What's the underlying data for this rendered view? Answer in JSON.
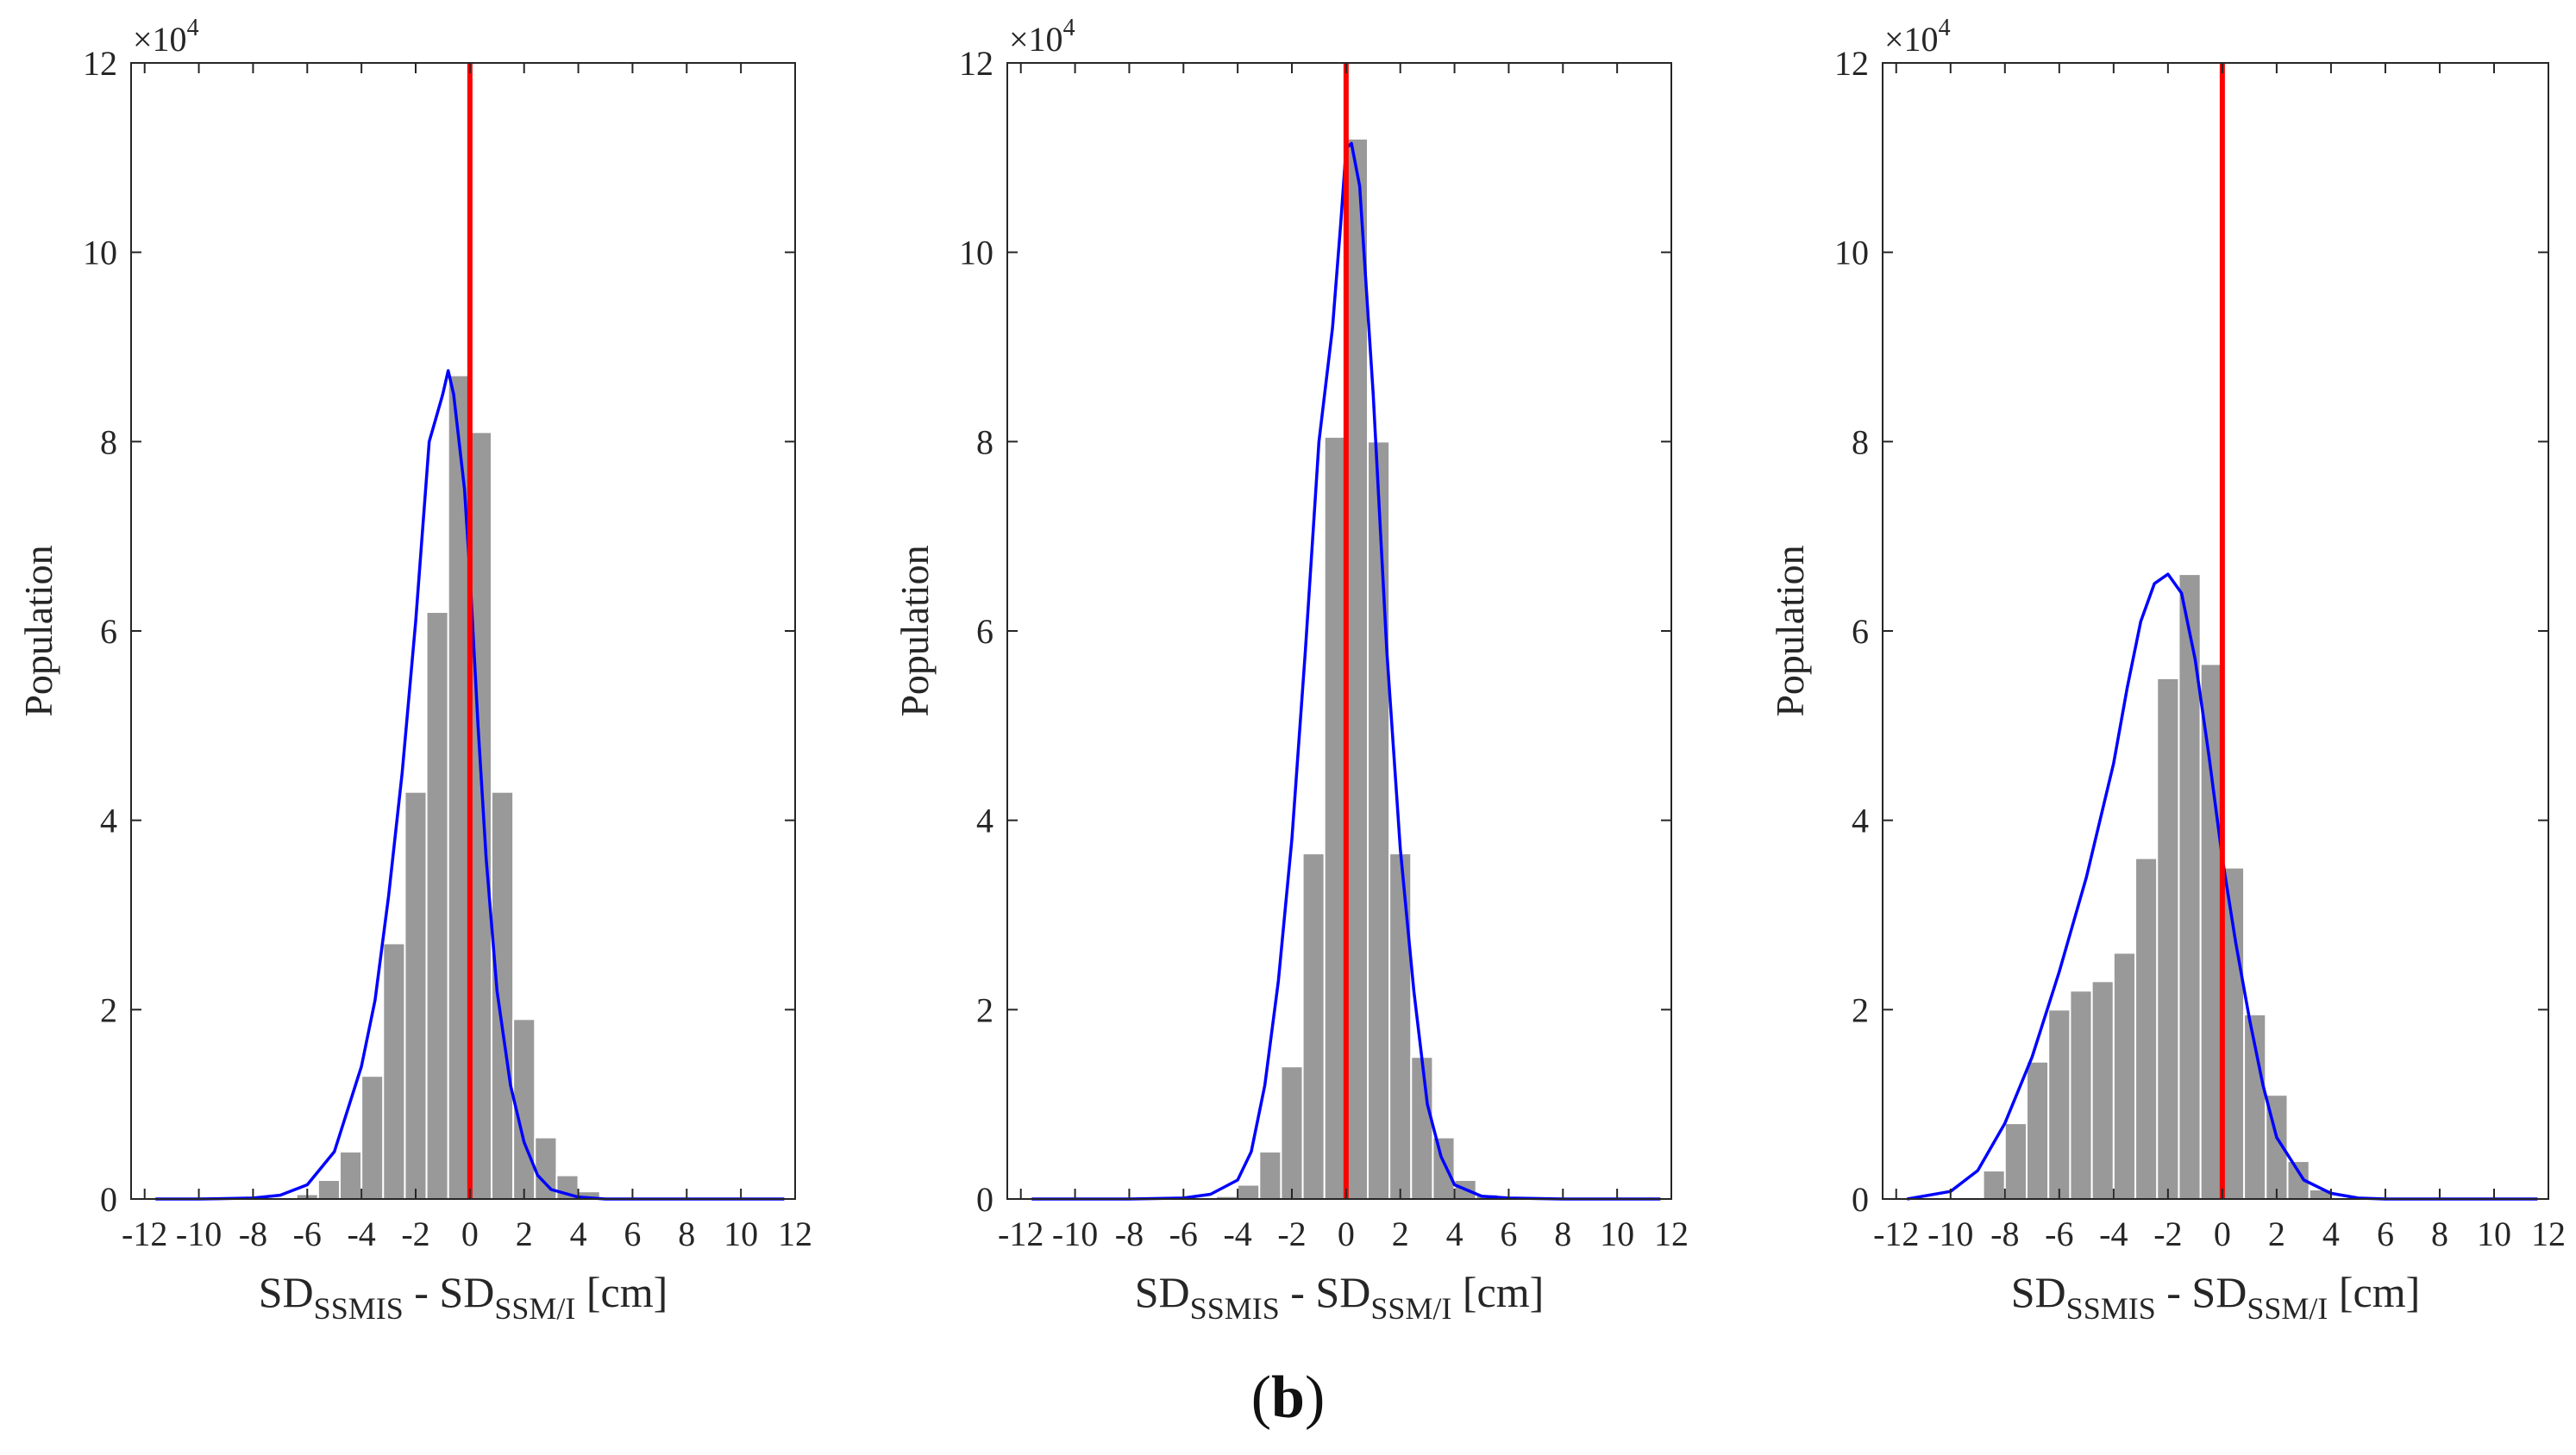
{
  "figure_label": {
    "open": "(",
    "letter": "b",
    "close": ")"
  },
  "colors": {
    "bar": "#999999",
    "bar_edge": "#ffffff",
    "fit": "#0000ff",
    "zero_line": "#ff0000",
    "axis": "#262626"
  },
  "chart_data": [
    {
      "type": "bar",
      "title": "",
      "ylabel": "Population",
      "xlabel": {
        "main1": "SD",
        "sub1": "SSMIS",
        "mid": " - SD",
        "sub2": "SSM/I",
        "tail": " [cm]"
      },
      "y_exponent": {
        "base": "×10",
        "power": "4"
      },
      "xlim": [
        -12.5,
        12
      ],
      "ylim": [
        0,
        120000
      ],
      "xticks": [
        -12,
        -10,
        -8,
        -6,
        -4,
        -2,
        0,
        2,
        4,
        6,
        8,
        10,
        12
      ],
      "xtick_labels": [
        "-12",
        "-10",
        "-8",
        "-6",
        "-4",
        "-2",
        "0",
        "2",
        "4",
        "6",
        "8",
        "10",
        "12"
      ],
      "yticks": [
        0,
        20000,
        40000,
        60000,
        80000,
        100000,
        120000
      ],
      "ytick_labels": [
        "0",
        "2",
        "4",
        "6",
        "8",
        "10",
        "12"
      ],
      "bin_width": 0.8,
      "bin_centers": [
        -6.8,
        -6.0,
        -5.2,
        -4.4,
        -3.6,
        -2.8,
        -2.0,
        -1.2,
        -0.4,
        0.4,
        1.2,
        2.0,
        2.8,
        3.6,
        4.4
      ],
      "values": [
        100,
        500,
        2000,
        5000,
        13000,
        27000,
        43000,
        62000,
        87000,
        81000,
        43000,
        19000,
        6500,
        2500,
        800
      ],
      "fit_x": [
        -11.6,
        -10,
        -8,
        -7,
        -6,
        -5,
        -4,
        -3.5,
        -3,
        -2.5,
        -2,
        -1.5,
        -1.3,
        -1.0,
        -0.8,
        -0.6,
        -0.4,
        -0.2,
        0,
        0.3,
        0.6,
        1,
        1.5,
        2,
        2.5,
        3,
        4,
        5,
        6,
        8,
        10,
        11.6
      ],
      "fit_y": [
        0,
        0,
        100,
        400,
        1500,
        5000,
        14000,
        21000,
        32000,
        45000,
        61000,
        80000,
        82000,
        85000,
        87500,
        85000,
        80000,
        75000,
        66000,
        50000,
        36000,
        22000,
        12000,
        6000,
        2500,
        1000,
        200,
        0,
        0,
        0,
        0,
        0
      ],
      "zero_line_x": 0
    },
    {
      "type": "bar",
      "title": "",
      "ylabel": "Population",
      "xlabel": {
        "main1": "SD",
        "sub1": "SSMIS",
        "mid": " - SD",
        "sub2": "SSM/I",
        "tail": " [cm]"
      },
      "y_exponent": {
        "base": "×10",
        "power": "4"
      },
      "xlim": [
        -12.5,
        12
      ],
      "ylim": [
        0,
        120000
      ],
      "xticks": [
        -12,
        -10,
        -8,
        -6,
        -4,
        -2,
        0,
        2,
        4,
        6,
        8,
        10,
        12
      ],
      "xtick_labels": [
        "-12",
        "-10",
        "-8",
        "-6",
        "-4",
        "-2",
        "0",
        "2",
        "4",
        "6",
        "8",
        "10",
        "12"
      ],
      "yticks": [
        0,
        20000,
        40000,
        60000,
        80000,
        100000,
        120000
      ],
      "ytick_labels": [
        "0",
        "2",
        "4",
        "6",
        "8",
        "10",
        "12"
      ],
      "bin_width": 0.8,
      "bin_centers": [
        -4.4,
        -3.6,
        -2.8,
        -2.0,
        -1.2,
        -0.4,
        0.4,
        1.2,
        2.0,
        2.8,
        3.6,
        4.4,
        5.2
      ],
      "values": [
        300,
        1500,
        5000,
        14000,
        36500,
        80500,
        112000,
        80000,
        36500,
        15000,
        6500,
        2000,
        500
      ],
      "fit_x": [
        -11.6,
        -8,
        -6,
        -5,
        -4,
        -3.5,
        -3,
        -2.5,
        -2,
        -1.5,
        -1,
        -0.5,
        -0.2,
        0,
        0.2,
        0.5,
        1,
        1.5,
        2,
        2.5,
        3,
        3.5,
        4,
        5,
        6,
        8,
        11.6
      ],
      "fit_y": [
        0,
        0,
        100,
        500,
        2000,
        5000,
        12000,
        23000,
        38000,
        58000,
        80000,
        92000,
        103000,
        111000,
        111500,
        107000,
        85000,
        58000,
        37000,
        22000,
        10000,
        4500,
        1500,
        300,
        100,
        0,
        0
      ],
      "zero_line_x": 0
    },
    {
      "type": "bar",
      "title": "",
      "ylabel": "Population",
      "xlabel": {
        "main1": "SD",
        "sub1": "SSMIS",
        "mid": " - SD",
        "sub2": "SSM/I",
        "tail": " [cm]"
      },
      "y_exponent": {
        "base": "×10",
        "power": "4"
      },
      "xlim": [
        -12.5,
        12
      ],
      "ylim": [
        0,
        120000
      ],
      "xticks": [
        -12,
        -10,
        -8,
        -6,
        -4,
        -2,
        0,
        2,
        4,
        6,
        8,
        10,
        12
      ],
      "xtick_labels": [
        "-12",
        "-10",
        "-8",
        "-6",
        "-4",
        "-2",
        "0",
        "2",
        "4",
        "6",
        "8",
        "10",
        "12"
      ],
      "yticks": [
        0,
        20000,
        40000,
        60000,
        80000,
        100000,
        120000
      ],
      "ytick_labels": [
        "0",
        "2",
        "4",
        "6",
        "8",
        "10",
        "12"
      ],
      "bin_width": 0.8,
      "bin_centers": [
        -8.4,
        -7.6,
        -6.8,
        -6.0,
        -5.2,
        -4.4,
        -3.6,
        -2.8,
        -2.0,
        -1.2,
        -0.4,
        0.4,
        1.2,
        2.0,
        2.8,
        3.6
      ],
      "values": [
        3000,
        8000,
        14500,
        20000,
        22000,
        23000,
        26000,
        36000,
        55000,
        66000,
        56500,
        35000,
        19500,
        11000,
        4000,
        1000
      ],
      "fit_x": [
        -11.6,
        -10,
        -9,
        -8,
        -7,
        -6,
        -5,
        -4,
        -3.5,
        -3,
        -2.5,
        -2,
        -1.5,
        -1,
        -0.5,
        0,
        0.5,
        1,
        1.5,
        2,
        3,
        4,
        5,
        6,
        8,
        10,
        11.6
      ],
      "fit_y": [
        0,
        800,
        3000,
        8000,
        15000,
        24000,
        34000,
        46000,
        54000,
        61000,
        65000,
        66000,
        64000,
        57000,
        47000,
        36000,
        27000,
        19000,
        12000,
        6500,
        2000,
        600,
        100,
        0,
        0,
        0,
        0
      ],
      "zero_line_x": 0
    }
  ]
}
